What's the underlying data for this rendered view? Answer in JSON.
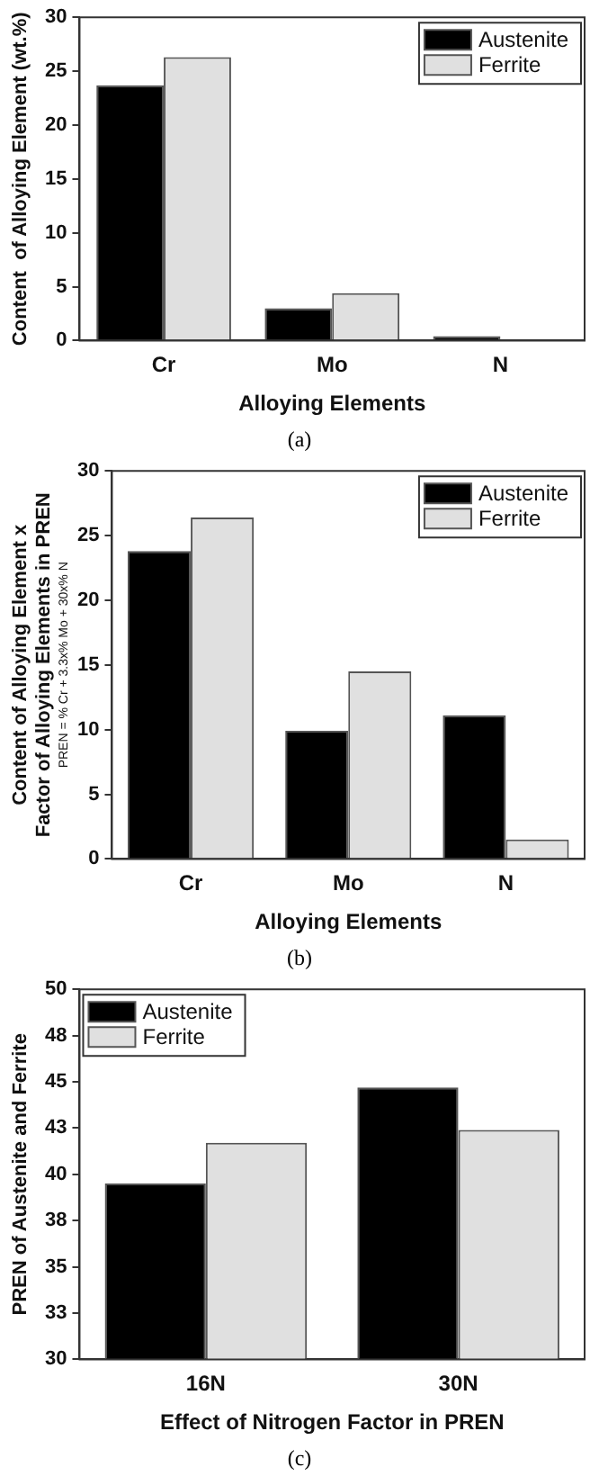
{
  "chart_data": [
    {
      "type": "bar",
      "categories": [
        "Cr",
        "Mo",
        "N"
      ],
      "xlabel": "Alloying Elements",
      "ylabel": "Content  of Alloying Element (wt.%)",
      "ylim": [
        0,
        30
      ],
      "yticks": [
        0,
        5,
        10,
        15,
        20,
        25,
        30
      ],
      "grid": false,
      "legend": "top right",
      "annotations": [
        "(a)"
      ],
      "series": [
        {
          "name": "Austenite",
          "color": "#000000",
          "values": [
            23.7,
            3.0,
            0.4
          ]
        },
        {
          "name": "Ferrite",
          "color": "#e0e0e0",
          "values": [
            26.3,
            4.4,
            0
          ]
        }
      ]
    },
    {
      "type": "bar",
      "categories": [
        "Cr",
        "Mo",
        "N"
      ],
      "xlabel": "Alloying Elements",
      "ylabel": "Content of Alloying Element x\nFactor of Alloying Elements in PREN\nPREN = % Cr + 3.3x% Mo + 30x% N",
      "ylim": [
        0,
        30
      ],
      "yticks": [
        0,
        5,
        10,
        15,
        20,
        25,
        30
      ],
      "grid": false,
      "legend": "top right",
      "annotations": [
        "(b)"
      ],
      "series": [
        {
          "name": "Austenite",
          "color": "#000000",
          "values": [
            23.8,
            9.9,
            11.1
          ]
        },
        {
          "name": "Ferrite",
          "color": "#e0e0e0",
          "values": [
            26.4,
            14.5,
            1.5
          ]
        }
      ]
    },
    {
      "type": "bar",
      "categories": [
        "16N",
        "30N"
      ],
      "xlabel": "Effect of Nitrogen Factor in PREN",
      "ylabel": "PREN of Austenite and Ferrite",
      "ylim": [
        30,
        50
      ],
      "yticks": [
        30,
        {
          "value": 32.5,
          "label": "33"
        },
        35,
        {
          "value": 37.5,
          "label": "38"
        },
        40,
        {
          "value": 42.5,
          "label": "43"
        },
        45,
        {
          "value": 47.5,
          "label": "48"
        },
        50
      ],
      "grid": false,
      "legend": "top left",
      "annotations": [
        "(c)"
      ],
      "series": [
        {
          "name": "Austenite",
          "color": "#000000",
          "values": [
            39.5,
            44.7
          ]
        },
        {
          "name": "Ferrite",
          "color": "#e0e0e0",
          "values": [
            41.7,
            42.4
          ]
        }
      ]
    }
  ]
}
